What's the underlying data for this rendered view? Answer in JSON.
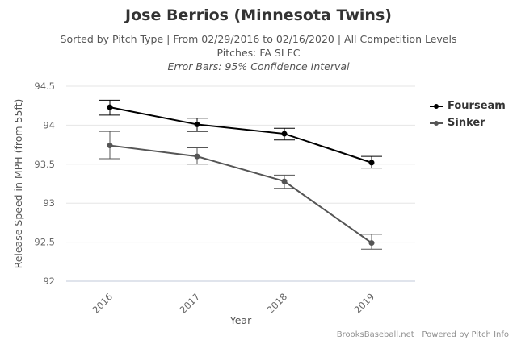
{
  "chart_data": {
    "type": "line",
    "title": "Jose Berrios (Minnesota Twins)",
    "subtitle": "Sorted by Pitch Type | From 02/29/2016 to 02/16/2020 | All Competition Levels",
    "subtitle2": "Pitches: FA SI FC",
    "subtitle3": "Error Bars: 95% Confidence Interval",
    "xlabel": "Year",
    "ylabel": "Release Speed in MPH (from 55ft)",
    "categories": [
      "2016",
      "2017",
      "2018",
      "2019"
    ],
    "ylim": [
      92,
      94.5
    ],
    "yticks": [
      "92",
      "92.5",
      "93",
      "93.5",
      "94",
      "94.5"
    ],
    "series": [
      {
        "name": "Fourseam",
        "color": "#000000",
        "values": [
          94.23,
          94.01,
          93.89,
          93.52
        ],
        "err_low": [
          94.13,
          93.92,
          93.81,
          93.45
        ],
        "err_high": [
          94.32,
          94.09,
          93.96,
          93.6
        ]
      },
      {
        "name": "Sinker",
        "color": "#555555",
        "values": [
          93.74,
          93.6,
          93.28,
          92.49
        ],
        "err_low": [
          93.57,
          93.5,
          93.19,
          92.41
        ],
        "err_high": [
          93.92,
          93.71,
          93.36,
          92.6
        ]
      }
    ],
    "legend_position": "right"
  },
  "credits": "BrooksBaseball.net | Powered by Pitch Info"
}
